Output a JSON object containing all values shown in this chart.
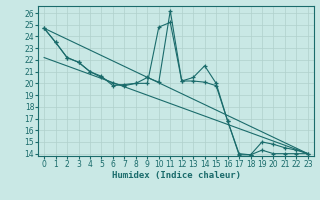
{
  "xlabel": "Humidex (Indice chaleur)",
  "background_color": "#c9e8e5",
  "grid_color": "#b0d0cc",
  "line_color": "#1a6b6b",
  "xlim": [
    -0.5,
    23.5
  ],
  "ylim": [
    13.8,
    26.6
  ],
  "yticks": [
    14,
    15,
    16,
    17,
    18,
    19,
    20,
    21,
    22,
    23,
    24,
    25,
    26
  ],
  "xticks": [
    0,
    1,
    2,
    3,
    4,
    5,
    6,
    7,
    8,
    9,
    10,
    11,
    12,
    13,
    14,
    15,
    16,
    17,
    18,
    19,
    20,
    21,
    22,
    23
  ],
  "s0x": [
    0,
    1,
    2,
    3,
    4,
    5,
    6,
    7,
    8,
    9,
    10,
    11,
    12,
    13,
    14,
    15,
    16,
    17,
    18,
    19,
    20,
    21,
    22,
    23
  ],
  "s0y": [
    24.7,
    23.5,
    22.2,
    21.8,
    21.0,
    20.5,
    20.0,
    19.8,
    20.0,
    20.5,
    20.1,
    26.2,
    20.2,
    20.5,
    21.5,
    20.0,
    16.8,
    14.0,
    13.9,
    15.0,
    14.8,
    14.5,
    14.3,
    14.0
  ],
  "s1x": [
    0,
    1,
    2,
    3,
    4,
    5,
    6,
    7,
    8,
    9,
    10,
    11,
    12,
    13,
    14,
    15,
    16,
    17,
    18,
    19,
    20,
    21,
    22,
    23
  ],
  "s1y": [
    24.7,
    23.5,
    22.2,
    21.8,
    21.0,
    20.6,
    19.8,
    19.9,
    20.0,
    20.0,
    24.8,
    25.2,
    20.2,
    20.2,
    20.1,
    19.8,
    16.8,
    13.9,
    13.9,
    14.3,
    14.0,
    14.0,
    14.0,
    14.0
  ],
  "s2x": [
    0,
    23
  ],
  "s2y": [
    24.7,
    14.0
  ],
  "s3x": [
    0,
    23
  ],
  "s3y": [
    22.2,
    14.0
  ],
  "tick_fontsize": 5.5,
  "xlabel_fontsize": 6.5
}
